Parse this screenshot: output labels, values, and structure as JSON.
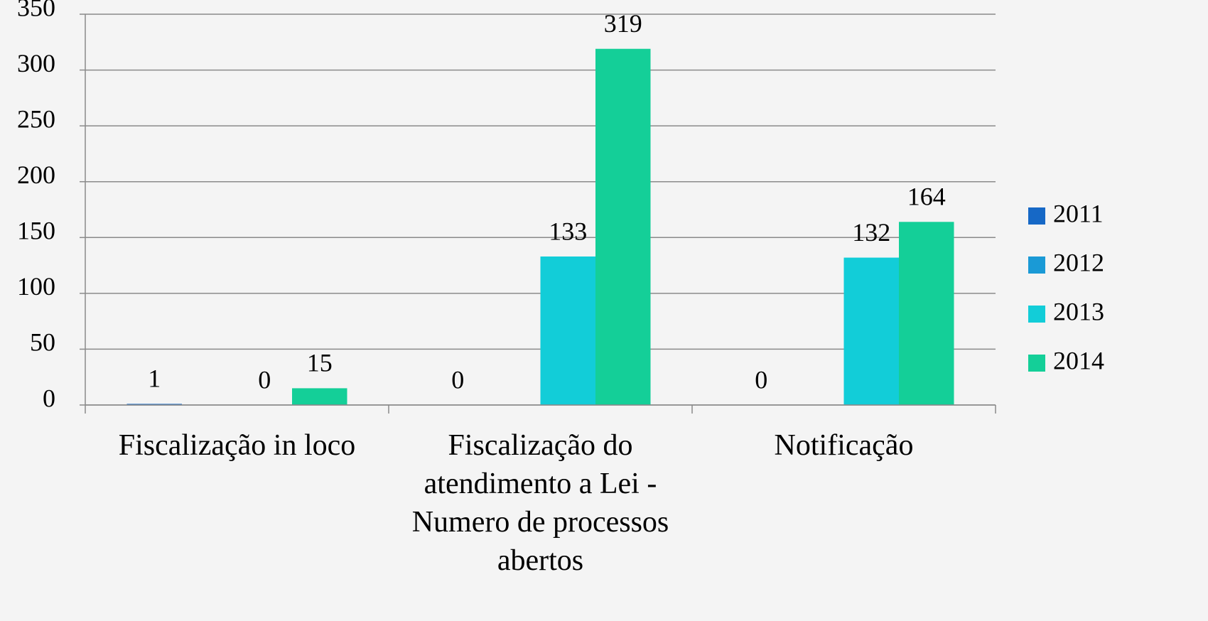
{
  "chart_data": {
    "type": "bar",
    "categories": [
      "Fiscalização in loco",
      "Fiscalização do atendimento a Lei - Numero de processos abertos",
      "Notificação"
    ],
    "series": [
      {
        "name": "2011",
        "color": "#1668c6",
        "values": [
          1,
          0,
          0
        ]
      },
      {
        "name": "2012",
        "color": "#1a9ad6",
        "values": [
          null,
          null,
          null
        ]
      },
      {
        "name": "2013",
        "color": "#12cdd8",
        "values": [
          0,
          133,
          132
        ]
      },
      {
        "name": "2014",
        "color": "#14cf98",
        "values": [
          15,
          319,
          164
        ]
      }
    ],
    "ylim": [
      0,
      350
    ],
    "yticks": [
      0,
      50,
      100,
      150,
      200,
      250,
      300,
      350
    ],
    "grid": true,
    "legend": "right"
  }
}
